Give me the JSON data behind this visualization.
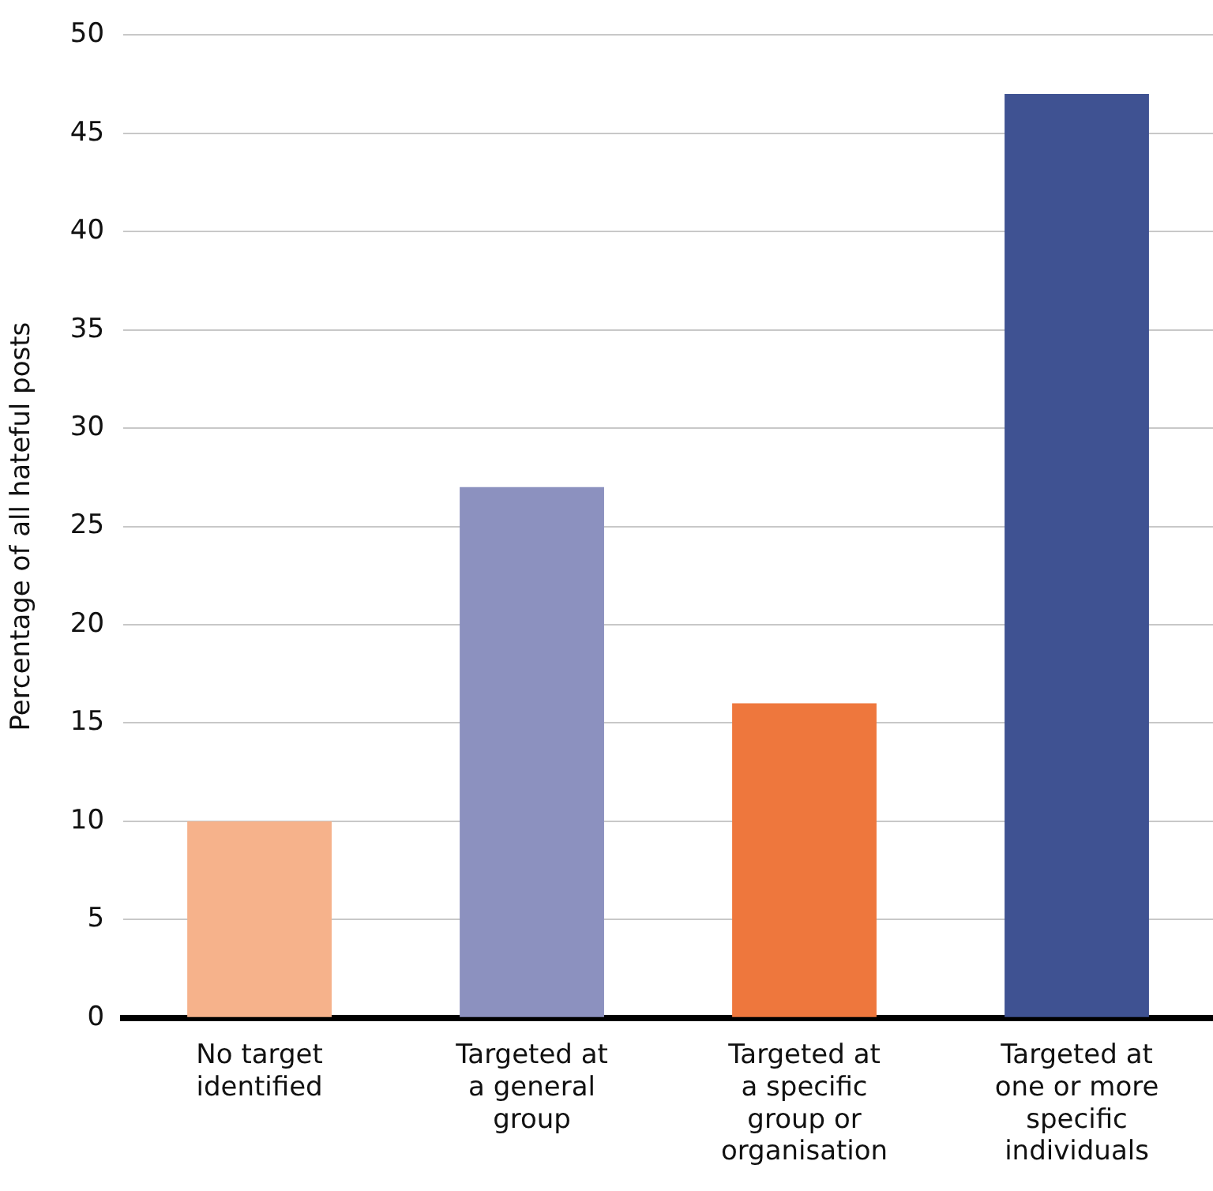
{
  "chart_data": {
    "type": "bar",
    "ylabel": "Percentage of all hateful posts",
    "categories": [
      "No target identified",
      "Targeted at a general group",
      "Targeted at a specific group or organisation",
      "Targeted at one or more specific individuals"
    ],
    "values": [
      10,
      27,
      16,
      47
    ],
    "colors": [
      "#f6b28b",
      "#8c91bf",
      "#ee773d",
      "#3f5292"
    ],
    "ylim": [
      0,
      50
    ],
    "yticks": [
      0,
      5,
      10,
      15,
      20,
      25,
      30,
      35,
      40,
      45,
      50
    ],
    "grid": "y",
    "legend": false
  }
}
